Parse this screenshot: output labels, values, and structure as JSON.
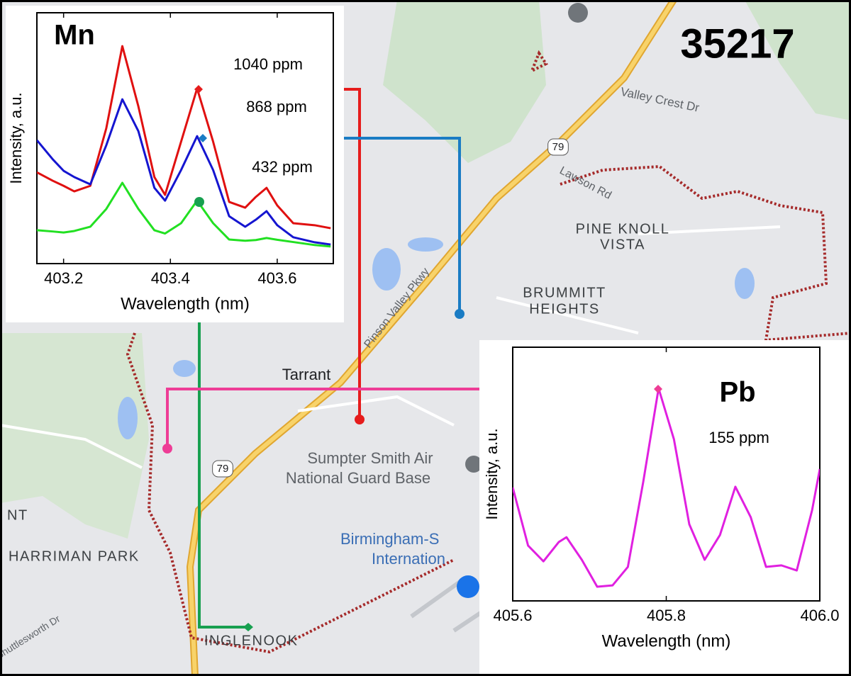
{
  "map": {
    "zip": "35217",
    "labels": [
      "Valley Crest Dr",
      "Lawson Rd",
      "79",
      "PINE KNOLL",
      "VISTA",
      "BRUMMITT",
      "HEIGHTS",
      "Pinson Valley Pkwy",
      "Tarrant",
      "Sumpter Smith Air",
      "National Guard Base",
      "79",
      "Birmingham-S",
      "Internation",
      "NT",
      "HARRIMAN PARK",
      "INGLENOOK",
      "Shuttlesworth Dr"
    ]
  },
  "chart_data": [
    {
      "type": "line",
      "title": "Mn",
      "x_label": "Wavelength (nm)",
      "y_label": "Intensity, a.u.",
      "xlim": [
        403.15,
        403.705
      ],
      "xticks": [
        403.2,
        403.4,
        403.6
      ],
      "ylim": [
        0,
        100
      ],
      "x": [
        403.15,
        403.18,
        403.2,
        403.22,
        403.25,
        403.28,
        403.31,
        403.34,
        403.37,
        403.39,
        403.42,
        403.45,
        403.48,
        403.51,
        403.54,
        403.56,
        403.58,
        403.6,
        403.63,
        403.67,
        403.7
      ],
      "series": [
        {
          "name": "1040 ppm",
          "color": "#e01010",
          "values": [
            36.4,
            33,
            31,
            28.8,
            31,
            54,
            86.7,
            62.7,
            34.5,
            27.4,
            48.6,
            69.8,
            48.6,
            24.6,
            22.3,
            26.6,
            30.2,
            23.2,
            16.1,
            15.3,
            14.1
          ]
        },
        {
          "name": "868 ppm",
          "color": "#1515d0",
          "values": [
            49.2,
            41.5,
            37,
            34.5,
            31.6,
            47.2,
            65.5,
            52.8,
            30.2,
            25.1,
            37.3,
            50.8,
            37.3,
            18.9,
            14.7,
            17.5,
            20.9,
            15.3,
            10.5,
            8.5,
            7.6
          ]
        },
        {
          "name": "432 ppm",
          "color": "#22e022",
          "values": [
            13.3,
            12.8,
            12.4,
            13,
            14.7,
            21.8,
            32.2,
            21.8,
            13.3,
            12,
            16.1,
            25.1,
            16.1,
            9.6,
            9.1,
            9.4,
            10.2,
            9.5,
            8.6,
            7.4,
            6.8
          ]
        }
      ]
    },
    {
      "type": "line",
      "title": "Pb",
      "x_label": "Wavelength (nm)",
      "y_label": "Intensity, a.u.",
      "xlim": [
        405.6,
        406.0
      ],
      "xticks": [
        405.6,
        405.8,
        {
          "value": 406,
          "label": "406.0"
        }
      ],
      "ylim": [
        0,
        100
      ],
      "x": [
        405.6,
        405.62,
        405.64,
        405.66,
        405.67,
        405.69,
        405.71,
        405.73,
        405.75,
        405.77,
        405.79,
        405.81,
        405.83,
        405.85,
        405.87,
        405.89,
        405.91,
        405.93,
        405.95,
        405.97,
        405.99,
        406.0
      ],
      "series": [
        {
          "name": "155 ppm",
          "color": "#e020e0",
          "values": [
            44.7,
            21.8,
            15.6,
            23.2,
            25.1,
            16.2,
            5.6,
            6.1,
            13.4,
            46.9,
            83.8,
            63.7,
            30.2,
            16.2,
            26,
            45,
            33,
            13.4,
            14,
            12,
            35.8,
            52
          ]
        }
      ]
    }
  ]
}
